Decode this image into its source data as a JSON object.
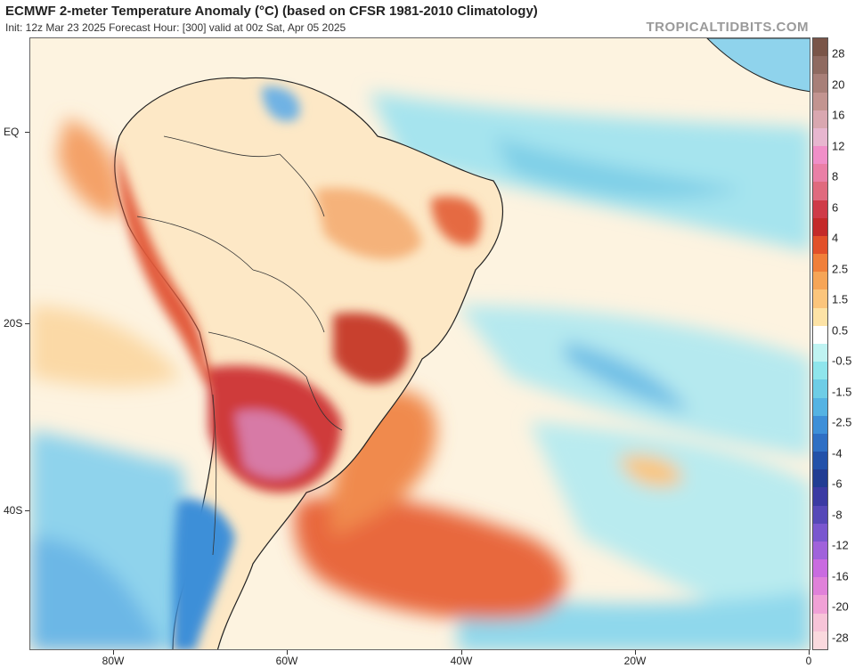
{
  "header": {
    "title": "ECMWF 2-meter Temperature Anomaly (°C) (based on CFSR 1981-2010 Climatology)",
    "subtitle": "Init: 12z Mar 23 2025   Forecast Hour: [300]   valid at 00z Sat, Apr 05 2025",
    "brand": "TROPICALTIDBITS.COM"
  },
  "map": {
    "lat_labels": [
      "EQ",
      "20S",
      "40S"
    ],
    "lon_labels": [
      "80W",
      "60W",
      "40W",
      "20W",
      "0"
    ]
  },
  "colorbar": {
    "labels": [
      "28",
      "20",
      "16",
      "12",
      "8",
      "6",
      "4",
      "2.5",
      "1.5",
      "0.5",
      "-0.5",
      "-1.5",
      "-2.5",
      "-4",
      "-6",
      "-8",
      "-12",
      "-16",
      "-20",
      "-28"
    ],
    "colors": [
      "#7a5548",
      "#8f6a60",
      "#a87f78",
      "#c29490",
      "#d9a7b0",
      "#e7b6cf",
      "#f08fc8",
      "#ea7fa6",
      "#e06a7e",
      "#cf3b48",
      "#c42a2a",
      "#e2502a",
      "#f07f3a",
      "#f6a557",
      "#fbc57c",
      "#fde3a6",
      "#ffffff",
      "#bff3f2",
      "#8fe5ec",
      "#6ecde6",
      "#55b3e3",
      "#3e8fd8",
      "#2f6fc4",
      "#2351a9",
      "#213c93",
      "#3b3aa3",
      "#5648b8",
      "#7a57cf",
      "#a062db",
      "#c96be0",
      "#e081d9",
      "#f0a1d6",
      "#f7c4d8",
      "#fad9de"
    ]
  }
}
